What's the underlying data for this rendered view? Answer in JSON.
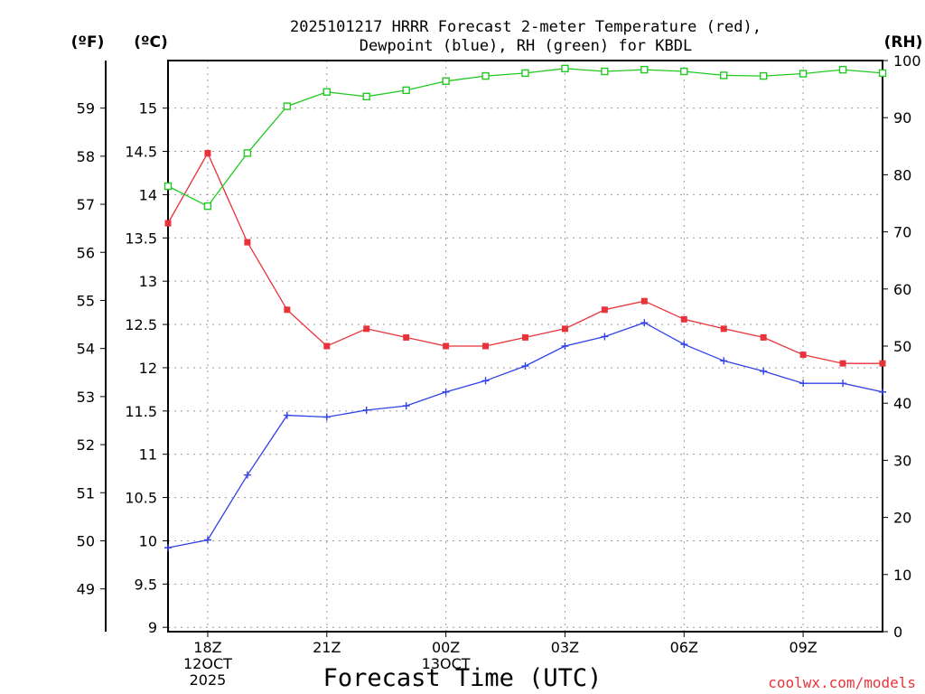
{
  "chart_data": {
    "type": "line",
    "title_line1": "2025101217 HRRR Forecast 2-meter Temperature (red),",
    "title_line2": "Dewpoint (blue), RH (green) for KBDL",
    "xlabel": "Forecast Time (UTC)",
    "credit": "coolwx.com/models",
    "units": {
      "fahrenheit": "(ºF)",
      "celsius": "(ºC)",
      "rh": "(RH)"
    },
    "x_hours": [
      17,
      18,
      19,
      20,
      21,
      22,
      23,
      24,
      25,
      26,
      27,
      28,
      29,
      30,
      31,
      32,
      33,
      34,
      35
    ],
    "xlim": [
      17,
      35
    ],
    "x_ticks": [
      {
        "x": 18,
        "lines": [
          "18Z",
          "12OCT",
          "2025"
        ]
      },
      {
        "x": 21,
        "lines": [
          "21Z"
        ]
      },
      {
        "x": 24,
        "lines": [
          "00Z",
          "13OCT"
        ]
      },
      {
        "x": 27,
        "lines": [
          "03Z"
        ]
      },
      {
        "x": 30,
        "lines": [
          "06Z"
        ]
      },
      {
        "x": 33,
        "lines": [
          "09Z"
        ]
      }
    ],
    "celsius_axis": {
      "ylim": [
        8.95,
        15.55
      ],
      "ticks": [
        "9",
        "9.5",
        "10",
        "10.5",
        "11",
        "11.5",
        "12",
        "12.5",
        "13",
        "13.5",
        "14",
        "14.5",
        "15"
      ]
    },
    "fahrenheit_axis": {
      "ticks": [
        "49",
        "50",
        "51",
        "52",
        "53",
        "54",
        "55",
        "56",
        "57",
        "58",
        "59"
      ]
    },
    "rh_axis": {
      "ylim": [
        0,
        100
      ],
      "ticks": [
        "0",
        "10",
        "20",
        "30",
        "40",
        "50",
        "60",
        "70",
        "80",
        "90",
        "100"
      ]
    },
    "series": [
      {
        "name": "Temperature",
        "unit": "C",
        "color": "#e8333a",
        "marker": "filled-square",
        "values": [
          13.67,
          14.48,
          13.45,
          12.67,
          12.25,
          12.45,
          12.35,
          12.25,
          12.25,
          12.35,
          12.45,
          12.67,
          12.77,
          12.56,
          12.45,
          12.35,
          12.15,
          12.05,
          12.05
        ]
      },
      {
        "name": "Dewpoint",
        "unit": "C",
        "color": "#3142e6",
        "marker": "plus",
        "values": [
          9.92,
          10.01,
          10.76,
          11.45,
          11.43,
          11.51,
          11.56,
          11.72,
          11.85,
          12.02,
          12.25,
          12.36,
          12.52,
          12.27,
          12.08,
          11.96,
          11.82,
          11.82,
          11.72
        ]
      },
      {
        "name": "RH",
        "unit": "%",
        "color": "#22c922",
        "marker": "open-square",
        "values": [
          78.0,
          74.5,
          83.8,
          92.0,
          94.5,
          93.7,
          94.8,
          96.4,
          97.3,
          97.8,
          98.6,
          98.1,
          98.4,
          98.1,
          97.4,
          97.3,
          97.7,
          98.4,
          97.8
        ]
      }
    ]
  }
}
